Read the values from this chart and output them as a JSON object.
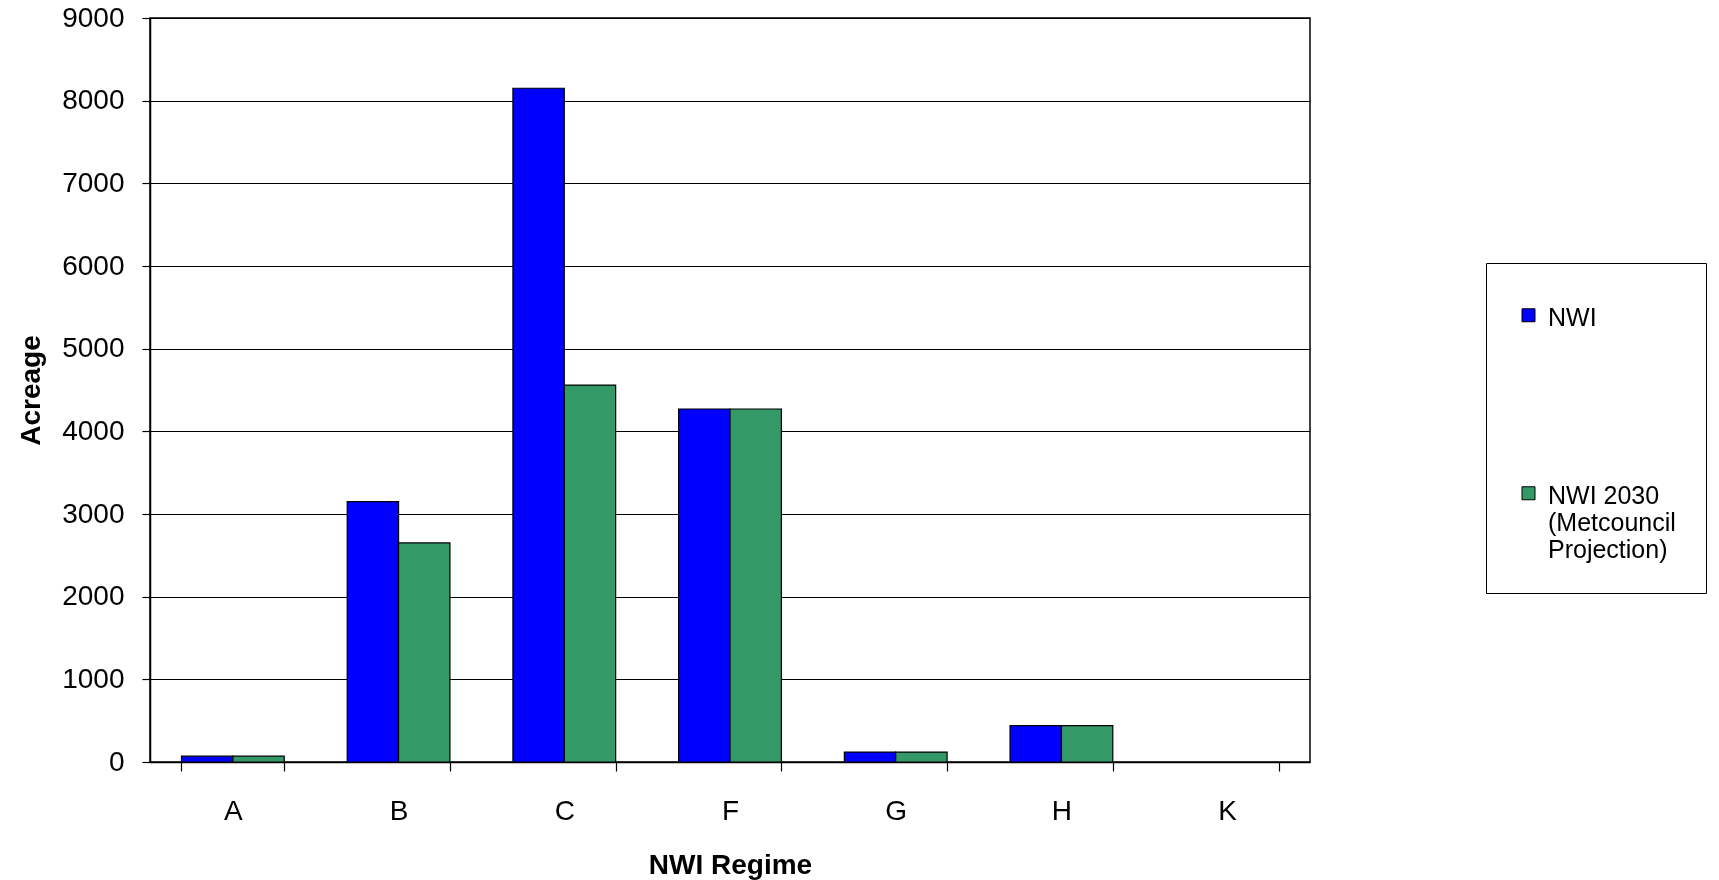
{
  "chart_data": {
    "type": "bar",
    "xlabel": "NWI Regime",
    "ylabel": "Acreage",
    "categories": [
      "A",
      "B",
      "C",
      "F",
      "G",
      "H",
      "K"
    ],
    "series": [
      {
        "name": "NWI",
        "color": "#0000ff",
        "values": [
          70,
          3150,
          8150,
          4270,
          120,
          440,
          null
        ]
      },
      {
        "name": "NWI 2030 (Metcouncil Projection)",
        "color": "#339966",
        "values": [
          70,
          2650,
          4560,
          4270,
          120,
          440,
          null
        ]
      }
    ],
    "ylim": [
      0,
      9000
    ],
    "yticks": [
      0,
      1000,
      2000,
      3000,
      4000,
      5000,
      6000,
      7000,
      8000,
      9000
    ],
    "grid": "y",
    "legend": "right"
  }
}
